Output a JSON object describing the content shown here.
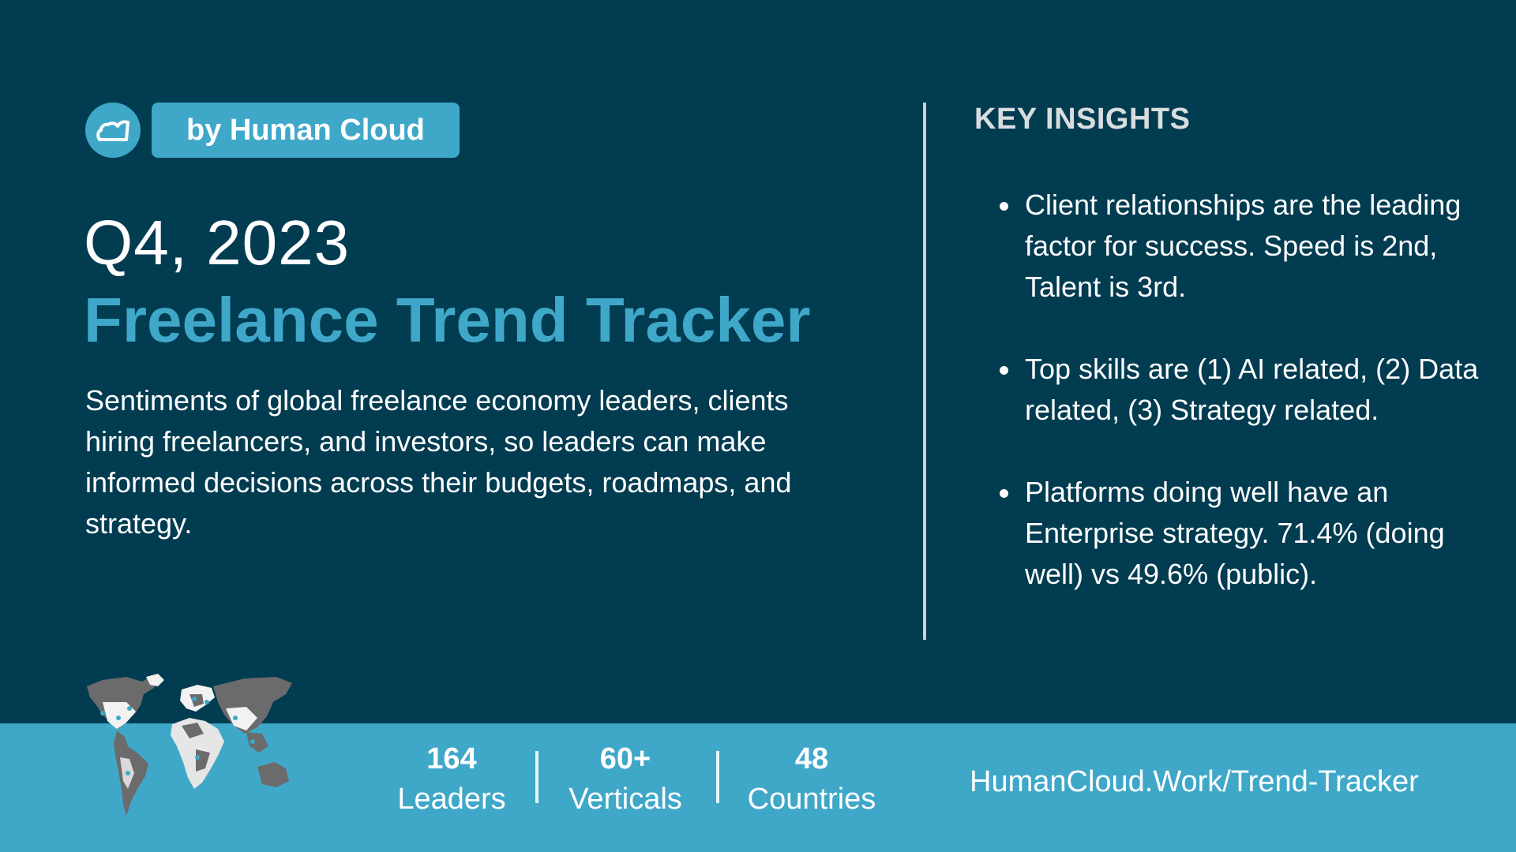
{
  "header": {
    "logo_icon": "cloud-icon",
    "badge_label": "by Human Cloud"
  },
  "hero": {
    "quarter": "Q4, 2023",
    "title": "Freelance Trend Tracker",
    "description": "Sentiments of global freelance economy leaders, clients hiring freelancers, and investors, so leaders can make informed decisions across their budgets, roadmaps, and strategy."
  },
  "insights": {
    "title": "KEY INSIGHTS",
    "items": [
      "Client relationships are the leading factor for success. Speed is 2nd, Talent is 3rd.",
      "Top skills are (1) AI related, (2) Data related, (3) Strategy related.",
      "Platforms doing well have an Enterprise strategy. 71.4% (doing well) vs 49.6% (public)."
    ]
  },
  "footer": {
    "map_icon": "world-map-icon",
    "stats": [
      {
        "value": "164",
        "label": "Leaders"
      },
      {
        "value": "60+",
        "label": "Verticals"
      },
      {
        "value": "48",
        "label": "Countries"
      }
    ],
    "site": "HumanCloud.Work/Trend-Tracker"
  },
  "colors": {
    "background": "#023c51",
    "accent": "#3fa8c9",
    "text": "#ffffff"
  }
}
